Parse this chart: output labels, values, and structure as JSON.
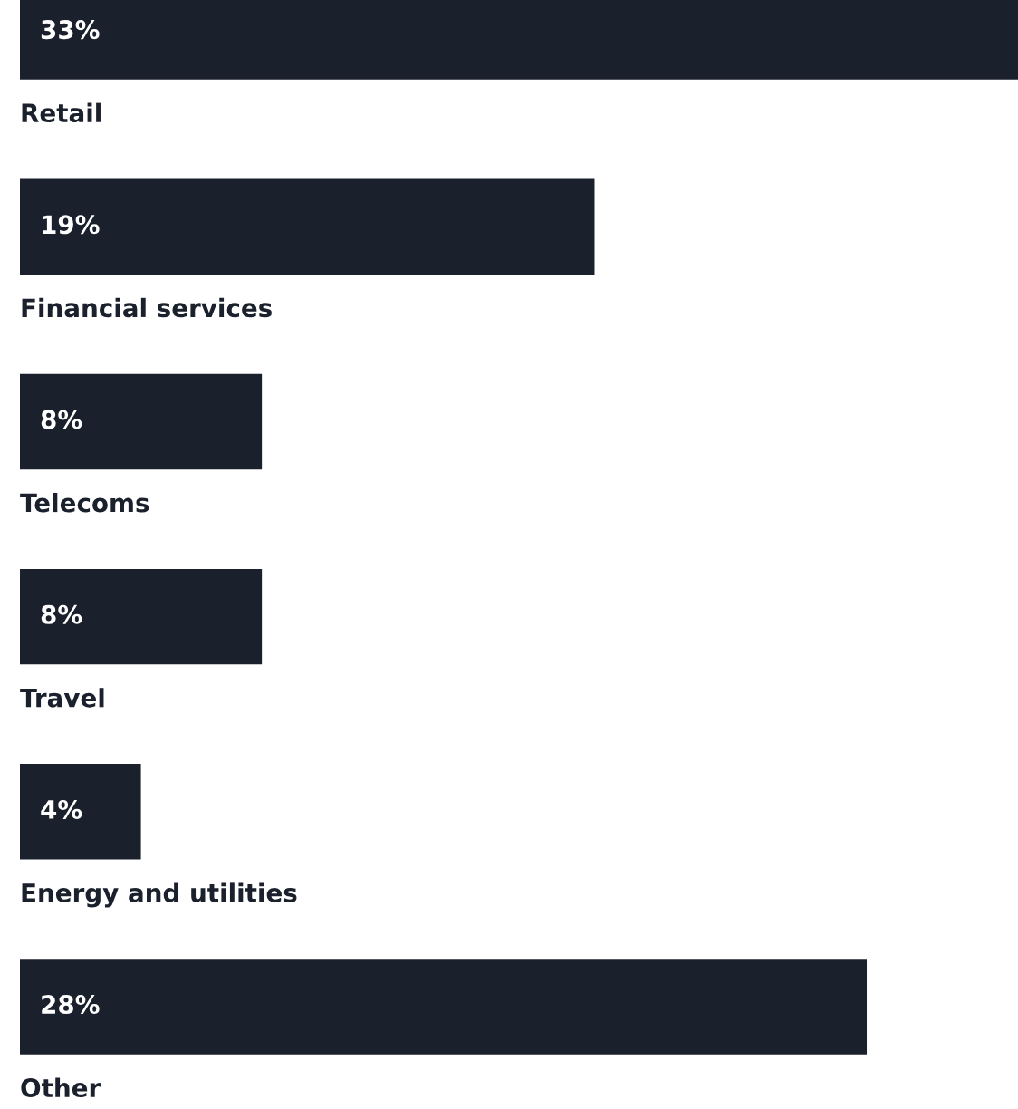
{
  "chart_data": {
    "type": "bar",
    "orientation": "horizontal",
    "categories": [
      "Retail",
      "Financial services",
      "Telecoms",
      "Travel",
      "Energy and utilities",
      "Other"
    ],
    "values": [
      33,
      19,
      8,
      8,
      4,
      28
    ],
    "value_labels": [
      "33%",
      "19%",
      "8%",
      "8%",
      "4%",
      "28%"
    ],
    "color": "#1b212c"
  }
}
